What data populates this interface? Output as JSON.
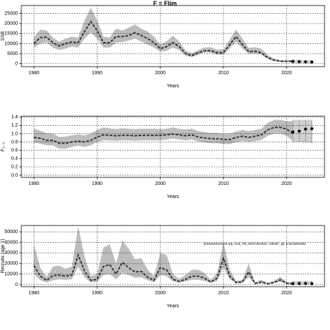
{
  "figure_title": "F = Flim",
  "colors": {
    "band": "#bdbdbd",
    "median": "#333333",
    "grid": "#000000",
    "points": "#000000"
  },
  "annotation": "stockassessment.org, Cod_7ek_WGCSE2022, r18198 , git: ec3c2a6c9a8e",
  "chart_data": [
    {
      "type": "area",
      "panel": "top",
      "title": "F = Flim",
      "xlabel": "Years",
      "ylabel": "SSB",
      "xlim": [
        1978,
        2026
      ],
      "ylim": [
        -1500,
        29000
      ],
      "xticks": [
        1980,
        1990,
        2000,
        2010,
        2020
      ],
      "yticks": [
        0,
        5000,
        10000,
        15000,
        20000,
        25000
      ],
      "grid": true,
      "x": [
        1980,
        1981,
        1982,
        1983,
        1984,
        1985,
        1986,
        1987,
        1988,
        1989,
        1990,
        1991,
        1992,
        1993,
        1994,
        1995,
        1996,
        1997,
        1998,
        1999,
        2000,
        2001,
        2002,
        2003,
        2004,
        2005,
        2006,
        2007,
        2008,
        2009,
        2010,
        2011,
        2012,
        2013,
        2014,
        2015,
        2016,
        2017,
        2018,
        2019,
        2020,
        2021
      ],
      "median": [
        10000,
        13000,
        13200,
        10500,
        8800,
        10000,
        10800,
        10500,
        16000,
        21000,
        16500,
        10500,
        10500,
        13500,
        13500,
        14000,
        15500,
        14000,
        12500,
        10500,
        7500,
        8500,
        10500,
        8500,
        5000,
        4000,
        5500,
        6500,
        6500,
        5500,
        5500,
        9500,
        13500,
        9500,
        6000,
        6200,
        5500,
        3000,
        1800,
        1200,
        1100,
        1200
      ],
      "lower": [
        8000,
        10000,
        10500,
        8000,
        6800,
        7500,
        8500,
        8000,
        12500,
        15500,
        12500,
        8000,
        8000,
        10500,
        10800,
        11500,
        12500,
        11000,
        9500,
        8000,
        6000,
        6500,
        8000,
        6800,
        4000,
        3200,
        4500,
        5500,
        5500,
        4500,
        4500,
        7500,
        11000,
        7500,
        4800,
        5000,
        4500,
        2400,
        1300,
        900,
        700,
        700
      ],
      "upper": [
        13000,
        17000,
        16500,
        13000,
        11000,
        12500,
        13500,
        13000,
        21500,
        28000,
        21500,
        13500,
        13000,
        17500,
        16500,
        18000,
        19500,
        17500,
        16000,
        13500,
        9500,
        11000,
        14000,
        11000,
        6500,
        5200,
        6800,
        8000,
        8200,
        7000,
        7200,
        12000,
        17000,
        12500,
        7800,
        8200,
        7500,
        4200,
        2500,
        1800,
        1700,
        1900
      ],
      "projection": {
        "x": [
          2021,
          2022,
          2023,
          2024
        ],
        "values": [
          1100,
          1000,
          900,
          850
        ],
        "lower": [
          300,
          250,
          200,
          150
        ],
        "upper": [
          2000,
          1900,
          1800,
          1800
        ]
      }
    },
    {
      "type": "area",
      "panel": "middle",
      "xlabel": "Years",
      "ylabel": "F₂₋₅",
      "xlim": [
        1978,
        2026
      ],
      "ylim": [
        -0.05,
        1.42
      ],
      "xticks": [
        1980,
        1990,
        2000,
        2010,
        2020
      ],
      "yticks": [
        0.0,
        0.2,
        0.4,
        0.6,
        0.8,
        1.0,
        1.2,
        1.4
      ],
      "grid": true,
      "x": [
        1980,
        1981,
        1982,
        1983,
        1984,
        1985,
        1986,
        1987,
        1988,
        1989,
        1990,
        1991,
        1992,
        1993,
        1994,
        1995,
        1996,
        1997,
        1998,
        1999,
        2000,
        2001,
        2002,
        2003,
        2004,
        2005,
        2006,
        2007,
        2008,
        2009,
        2010,
        2011,
        2012,
        2013,
        2014,
        2015,
        2016,
        2017,
        2018,
        2019,
        2020,
        2021
      ],
      "median": [
        0.91,
        0.89,
        0.84,
        0.84,
        0.77,
        0.77,
        0.8,
        0.82,
        0.8,
        0.84,
        0.92,
        0.97,
        0.96,
        0.95,
        0.96,
        0.96,
        0.95,
        0.96,
        0.96,
        0.96,
        0.96,
        0.97,
        0.99,
        0.97,
        0.95,
        0.97,
        0.92,
        0.9,
        0.88,
        0.88,
        0.86,
        0.86,
        0.91,
        0.94,
        0.91,
        0.94,
        0.97,
        1.09,
        1.15,
        1.15,
        1.11,
        1.01
      ],
      "lower": [
        0.79,
        0.76,
        0.72,
        0.72,
        0.64,
        0.64,
        0.68,
        0.71,
        0.68,
        0.72,
        0.8,
        0.84,
        0.84,
        0.83,
        0.84,
        0.84,
        0.83,
        0.84,
        0.84,
        0.84,
        0.84,
        0.86,
        0.88,
        0.86,
        0.84,
        0.86,
        0.81,
        0.79,
        0.77,
        0.77,
        0.75,
        0.75,
        0.79,
        0.82,
        0.8,
        0.82,
        0.85,
        0.95,
        1.0,
        1.0,
        0.95,
        0.82
      ],
      "upper": [
        1.12,
        1.07,
        1.01,
        1.0,
        0.92,
        0.93,
        0.96,
        0.98,
        0.96,
        1.0,
        1.09,
        1.15,
        1.13,
        1.11,
        1.13,
        1.12,
        1.11,
        1.12,
        1.12,
        1.12,
        1.11,
        1.12,
        1.15,
        1.12,
        1.1,
        1.12,
        1.06,
        1.04,
        1.02,
        1.02,
        1.0,
        1.0,
        1.05,
        1.09,
        1.06,
        1.09,
        1.12,
        1.26,
        1.33,
        1.33,
        1.3,
        1.3
      ],
      "projection": {
        "x": [
          2021,
          2022,
          2023,
          2024
        ],
        "values": [
          1.04,
          1.06,
          1.11,
          1.12
        ],
        "lower": [
          0.8,
          0.8,
          0.79,
          0.78
        ],
        "upper": [
          1.33,
          1.33,
          1.33,
          1.33
        ]
      }
    },
    {
      "type": "area",
      "panel": "bottom",
      "xlabel": "Years",
      "ylabel": "Recruits (age 1)",
      "xlim": [
        1978,
        2026
      ],
      "ylim": [
        -2000,
        56000
      ],
      "xticks": [
        1980,
        1990,
        2000,
        2010,
        2020
      ],
      "yticks": [
        0,
        10000,
        20000,
        30000,
        40000,
        50000
      ],
      "grid": true,
      "x": [
        1980,
        1981,
        1982,
        1983,
        1984,
        1985,
        1986,
        1987,
        1988,
        1989,
        1990,
        1991,
        1992,
        1993,
        1994,
        1995,
        1996,
        1997,
        1998,
        1999,
        2000,
        2001,
        2002,
        2003,
        2004,
        2005,
        2006,
        2007,
        2008,
        2009,
        2010,
        2011,
        2012,
        2013,
        2014,
        2015,
        2016,
        2017,
        2018,
        2019,
        2020,
        2021
      ],
      "median": [
        18000,
        8000,
        4000,
        8500,
        9000,
        8000,
        9000,
        28000,
        13000,
        4000,
        5000,
        17000,
        19000,
        10000,
        21000,
        16000,
        12000,
        12500,
        7000,
        4000,
        16000,
        14000,
        5000,
        3000,
        5000,
        8000,
        8000,
        6000,
        2500,
        6000,
        25000,
        8000,
        2000,
        2500,
        12000,
        1000,
        2500,
        800,
        2000,
        4500,
        1200,
        800
      ],
      "lower": [
        10000,
        4000,
        2000,
        4000,
        5000,
        4500,
        5000,
        17000,
        7000,
        2000,
        2500,
        9000,
        10000,
        5000,
        11000,
        9000,
        6500,
        7000,
        4000,
        2000,
        9000,
        8000,
        3000,
        1800,
        3000,
        4500,
        4500,
        3500,
        1500,
        3500,
        16000,
        5000,
        1200,
        1500,
        7000,
        500,
        1200,
        400,
        1200,
        2800,
        700,
        400
      ],
      "upper": [
        38000,
        16000,
        7000,
        17000,
        18000,
        15000,
        17000,
        55000,
        27000,
        8000,
        10000,
        35000,
        38000,
        20000,
        42000,
        34000,
        24000,
        25000,
        14000,
        8000,
        30000,
        28000,
        10000,
        5500,
        9000,
        14000,
        14000,
        11000,
        4500,
        11000,
        40000,
        14000,
        3500,
        4500,
        20000,
        2000,
        4500,
        1500,
        3500,
        7500,
        2500,
        2000
      ],
      "projection": {
        "x": [
          2021,
          2022,
          2023,
          2024
        ],
        "values": [
          900,
          1000,
          1000,
          900
        ],
        "lower": [
          300,
          300,
          300,
          300
        ],
        "upper": [
          3500,
          3500,
          3500,
          3500
        ]
      }
    }
  ]
}
